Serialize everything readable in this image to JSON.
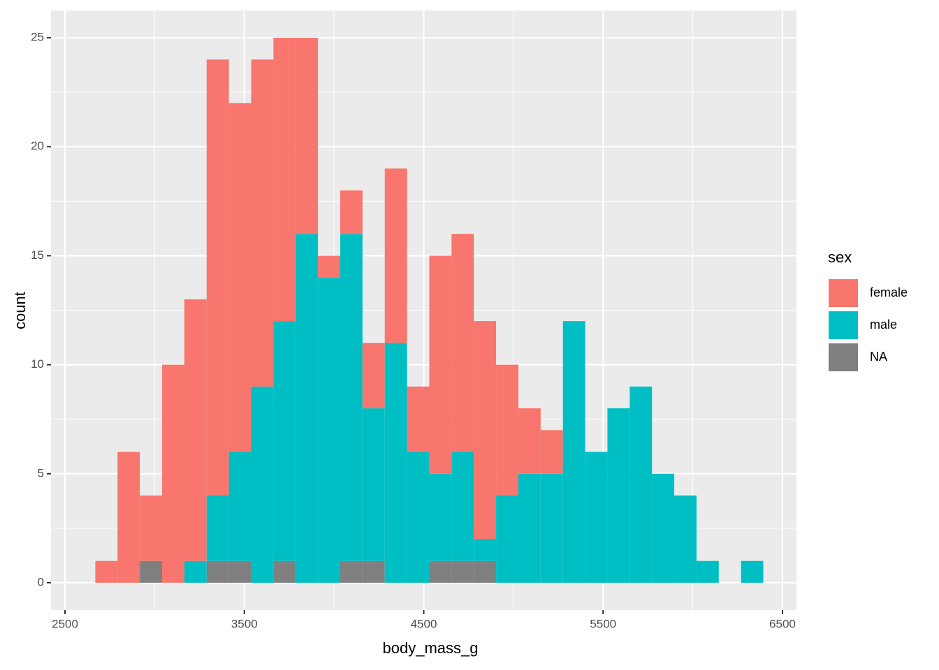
{
  "chart_data": {
    "type": "histogram",
    "stacked": true,
    "x_label": "body_mass_g",
    "y_label": "count",
    "legend_title": "sex",
    "legend_position": "right",
    "bins": [
      2669.0,
      2793.1,
      2917.2,
      3041.4,
      3165.5,
      3289.7,
      3413.8,
      3537.9,
      3662.1,
      3786.2,
      3910.3,
      4034.5,
      4158.6,
      4282.8,
      4406.9,
      4531.0,
      4655.2,
      4779.3,
      4903.4,
      5027.6,
      5151.7,
      5275.9,
      5400.0,
      5524.1,
      5648.3,
      5772.4,
      5896.6,
      6020.7,
      6144.8,
      6269.0,
      6393.1
    ],
    "series": [
      {
        "name": "female",
        "color": "#F8766D",
        "values": [
          1,
          6,
          3,
          10,
          12,
          20,
          16,
          15,
          13,
          9,
          1,
          2,
          3,
          8,
          3,
          10,
          10,
          10,
          6,
          3,
          2,
          0,
          0,
          0,
          0,
          0,
          0,
          0,
          0,
          0
        ]
      },
      {
        "name": "male",
        "color": "#00BFC4",
        "values": [
          0,
          0,
          0,
          0,
          1,
          3,
          5,
          9,
          11,
          16,
          14,
          15,
          7,
          11,
          6,
          4,
          5,
          1,
          4,
          5,
          5,
          12,
          6,
          8,
          9,
          5,
          4,
          1,
          0,
          1
        ]
      },
      {
        "name": "NA",
        "color": "#7F7F7F",
        "values": [
          0,
          0,
          1,
          0,
          0,
          1,
          1,
          0,
          1,
          0,
          0,
          1,
          1,
          0,
          0,
          1,
          1,
          1,
          0,
          0,
          0,
          0,
          0,
          0,
          0,
          0,
          0,
          0,
          0,
          0
        ]
      }
    ],
    "xlim": [
      2422,
      6578
    ],
    "xticks": [
      2500,
      3500,
      4500,
      5500,
      6500
    ],
    "x_minor_grid": [
      3000,
      4000,
      5000,
      6000
    ],
    "ylim": [
      -1.25,
      26.25
    ],
    "yticks": [
      0,
      5,
      10,
      15,
      20,
      25
    ],
    "y_minor_grid": [
      2.5,
      7.5,
      12.5,
      17.5,
      22.5
    ],
    "grid": true
  }
}
